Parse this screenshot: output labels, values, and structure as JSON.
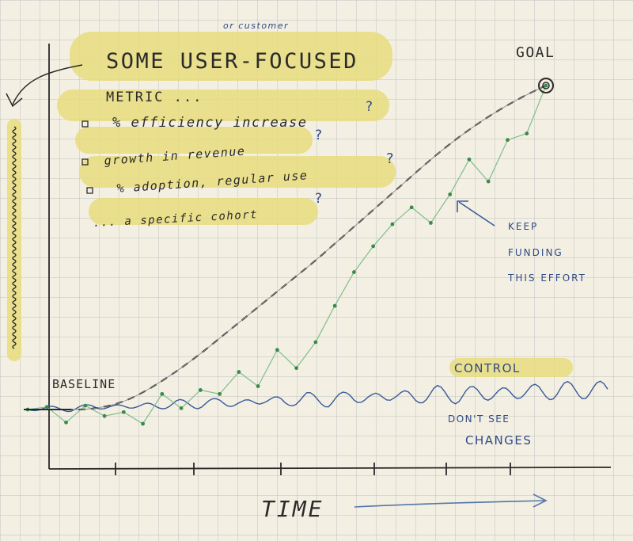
{
  "annotations": {
    "customer_note": "or customer",
    "headline": "SOME USER-FOCUSED",
    "metric": "METRIC ...",
    "bullets": [
      "% efficiency increase",
      "growth in revenue",
      "% adoption, regular use",
      "... a specific cohort"
    ],
    "goal": "GOAL",
    "keep_funding": [
      "KEEP",
      "FUNDING",
      "THIS EFFORT"
    ],
    "baseline": "BASELINE",
    "control": "CONTROL",
    "dont_see": [
      "DON'T SEE",
      "CHANGES"
    ],
    "x_axis": "TIME"
  },
  "colors": {
    "ink": "#2a2a2a",
    "highlight": "#e6dc7d",
    "dashed_curve": "#2a2a2a",
    "green_series": "#3a8a4c",
    "control_series": "#3a5a9a",
    "arrow_blue": "#5677a8"
  },
  "chart_data": {
    "type": "line",
    "xlabel": "TIME",
    "x": [
      0,
      1,
      2,
      3,
      4,
      5,
      6,
      7,
      8,
      9,
      10,
      11,
      12,
      13,
      14,
      15,
      16,
      17,
      18,
      19,
      20,
      21,
      22,
      23,
      24,
      25,
      26,
      27
    ],
    "series": [
      {
        "name": "",
        "style": "dashed",
        "values": [
          0,
          0,
          0,
          0,
          0.2,
          0.6,
          1.3,
          2.2,
          3.2,
          4.3,
          5.5,
          6.7,
          7.9,
          9.1,
          10.3,
          11.5,
          12.8,
          14.1,
          15.4,
          16.7,
          18.0,
          19.3,
          20.5,
          21.6,
          22.6,
          23.5,
          24.3,
          25
        ]
      },
      {
        "name": "",
        "style": "dots",
        "values": [
          0,
          0.2,
          -1,
          0.3,
          -0.5,
          -0.2,
          -1.1,
          1.2,
          0.1,
          1.5,
          1.2,
          2.9,
          1.8,
          4.6,
          3.2,
          5.2,
          8.0,
          10.6,
          12.6,
          14.3,
          15.6,
          14.4,
          16.6,
          19.3,
          17.6,
          20.8,
          21.3,
          25
        ]
      },
      {
        "name": "control",
        "style": "wavy",
        "values": [
          0,
          0.2,
          -0.3,
          0.4,
          -0.2,
          0.3,
          -0.3,
          0.5,
          -0.2,
          0.6,
          -0.4,
          0.8,
          -0.3,
          0.9,
          -0.4,
          1.0,
          -0.2,
          1.1,
          -0.3,
          1.2,
          -0.2,
          1.0,
          -0.1,
          0.9,
          0.2,
          0.8,
          0.4,
          0.6
        ]
      }
    ]
  }
}
